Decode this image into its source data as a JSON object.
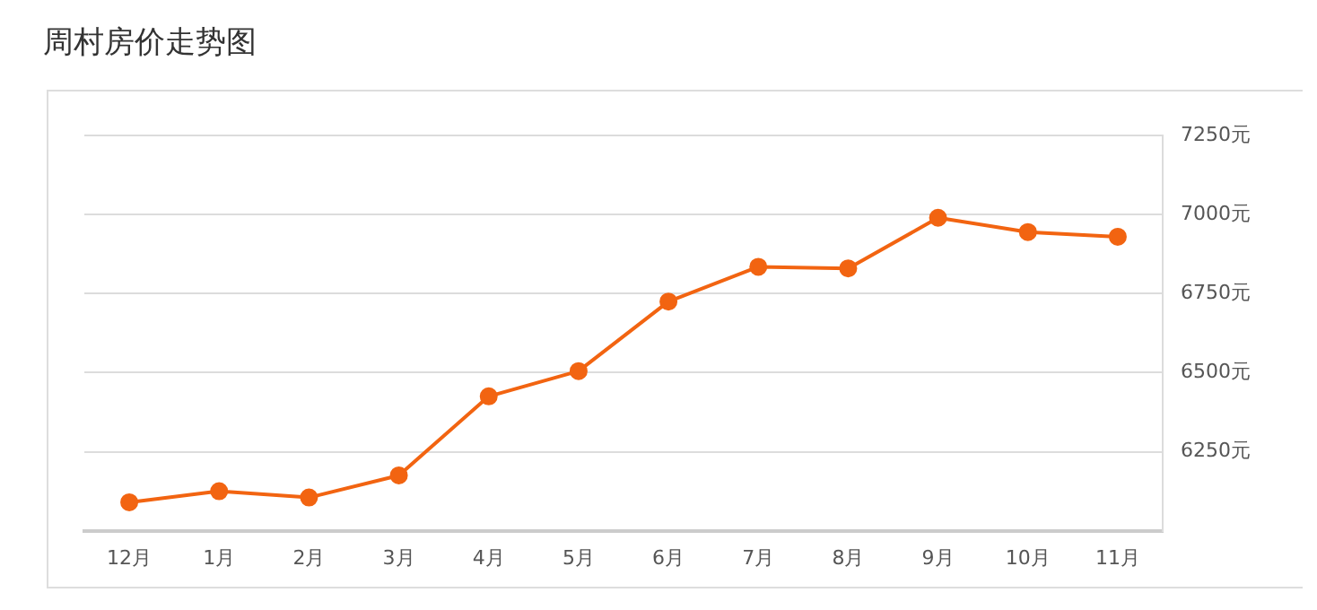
{
  "chart_data": {
    "type": "line",
    "title": "周村房价走势图",
    "categories": [
      "12月",
      "1月",
      "2月",
      "3月",
      "4月",
      "5月",
      "6月",
      "7月",
      "8月",
      "9月",
      "10月",
      "11月"
    ],
    "series": [
      {
        "color": "#f26411",
        "values": [
          6090,
          6125,
          6105,
          6175,
          6425,
          6505,
          6725,
          6835,
          6830,
          6990,
          6945,
          6930
        ]
      }
    ],
    "ylim": [
      6000,
      7250
    ],
    "yticks": [
      {
        "value": 6250,
        "label": "6250元"
      },
      {
        "value": 6500,
        "label": "6500元"
      },
      {
        "value": 6750,
        "label": "6750元"
      },
      {
        "value": 7000,
        "label": "7000元"
      },
      {
        "value": 7250,
        "label": "7250元"
      }
    ],
    "grid": "y",
    "legend": false,
    "marker": "circle",
    "line_style": "solid"
  }
}
